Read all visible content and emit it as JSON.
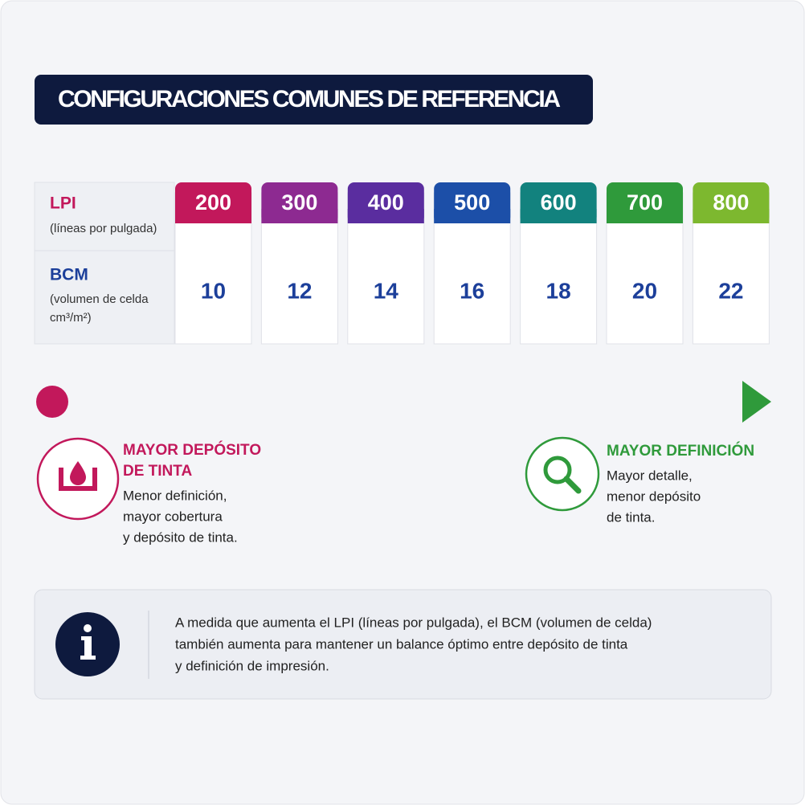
{
  "header": {
    "title": "CONFIGURACIONES COMUNES DE REFERENCIA"
  },
  "table": {
    "row_labels": [
      {
        "label": "LPI",
        "sublabel_lines": [
          "(líneas por pulgada)"
        ]
      },
      {
        "label": "BCM",
        "sublabel_lines": [
          "(volumen de celda",
          "cm³/m²)"
        ]
      }
    ],
    "columns": [
      {
        "lpi": 200,
        "bcm": 10,
        "color": "#c2185b"
      },
      {
        "lpi": 300,
        "bcm": 12,
        "color": "#8d2a91"
      },
      {
        "lpi": 400,
        "bcm": 14,
        "color": "#5a2d9f"
      },
      {
        "lpi": 500,
        "bcm": 16,
        "color": "#1c4fa8"
      },
      {
        "lpi": 600,
        "bcm": 18,
        "color": "#12827e"
      },
      {
        "lpi": 700,
        "bcm": 20,
        "color": "#2f9a3b"
      },
      {
        "lpi": 800,
        "bcm": 22,
        "color": "#7db82f"
      }
    ]
  },
  "scale": {
    "left": {
      "title_lines": [
        "MAYOR DEPÓSITO",
        "DE TINTA"
      ],
      "text_lines": [
        "Menor definición,",
        "mayor cobertura",
        "y depósito de tinta."
      ]
    },
    "right": {
      "title_lines": [
        "MAYOR DEFINICIÓN"
      ],
      "text_lines": [
        "Mayor detalle,",
        "menor depósito",
        "de tinta."
      ]
    }
  },
  "note": {
    "text_lines": [
      "A medida que aumenta el LPI (líneas por pulgada), el BCM (volumen de celda)",
      "también aumenta para mantener un balance óptimo entre depósito de tinta",
      "y definición de impresión."
    ]
  }
}
